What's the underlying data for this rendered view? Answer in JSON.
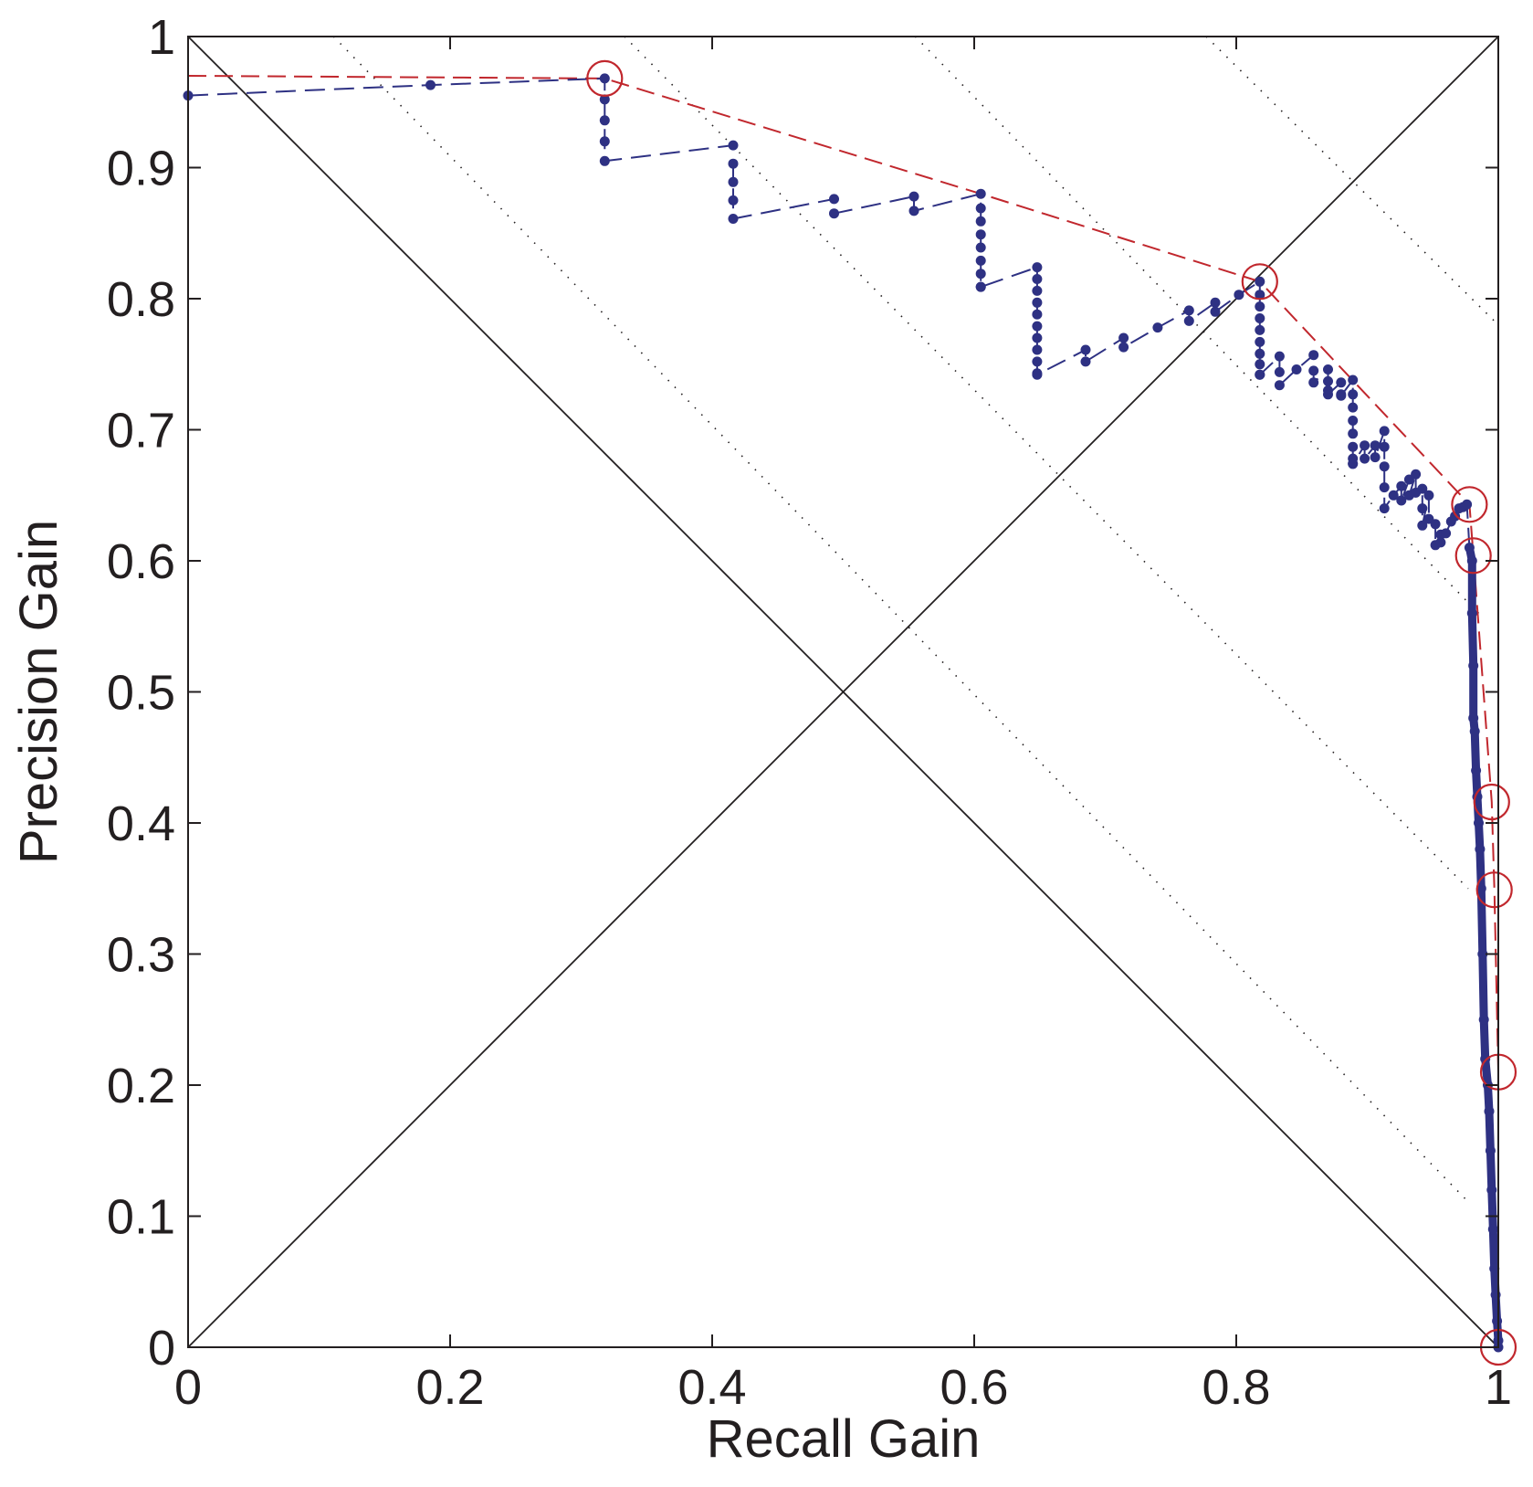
{
  "chart_data": {
    "type": "line",
    "xlabel": "Recall Gain",
    "ylabel": "Precision Gain",
    "xlim": [
      0,
      1
    ],
    "ylim": [
      0,
      1
    ],
    "xticks": [
      "0",
      "0.2",
      "0.4",
      "0.6",
      "0.8",
      "1"
    ],
    "yticks": [
      "0",
      "0.1",
      "0.2",
      "0.3",
      "0.4",
      "0.5",
      "0.6",
      "0.7",
      "0.8",
      "0.9",
      "1"
    ],
    "grid": false,
    "colors": {
      "curve": "#2e3183",
      "hull": "#c1272d",
      "reference": "#231f20",
      "iso": "#231f20"
    },
    "reference_lines": [
      {
        "x": [
          0,
          1
        ],
        "y": [
          0,
          1
        ]
      },
      {
        "x": [
          0,
          1
        ],
        "y": [
          1,
          0
        ]
      }
    ],
    "iso_lines": [
      {
        "x": [
          0.111,
          0.978
        ],
        "y": [
          1.0,
          0.11
        ]
      },
      {
        "x": [
          0.333,
          0.977
        ],
        "y": [
          1.0,
          0.35
        ]
      },
      {
        "x": [
          0.555,
          0.985
        ],
        "y": [
          1.0,
          0.56
        ]
      },
      {
        "x": [
          0.777,
          1.0
        ],
        "y": [
          1.0,
          0.78
        ]
      }
    ],
    "series": [
      {
        "style": "dashed-markers",
        "x": [
          0,
          0.185,
          0.318,
          0.318,
          0.318,
          0.318,
          0.318,
          0.416,
          0.416,
          0.416,
          0.416,
          0.416,
          0.493,
          0.493,
          0.554,
          0.554,
          0.605,
          0.605,
          0.605,
          0.605,
          0.605,
          0.605,
          0.605,
          0.605,
          0.605,
          0.648,
          0.648,
          0.648,
          0.648,
          0.648,
          0.648,
          0.648,
          0.648,
          0.648,
          0.648,
          0.648,
          0.685,
          0.685,
          0.714,
          0.714,
          0.74,
          0.764,
          0.764,
          0.784,
          0.784,
          0.802,
          0.818,
          0.818,
          0.818,
          0.818,
          0.818,
          0.818,
          0.818,
          0.818,
          0.818,
          0.818,
          0.833,
          0.833,
          0.833,
          0.846,
          0.859,
          0.859,
          0.859,
          0.87,
          0.87,
          0.87,
          0.87,
          0.88,
          0.88,
          0.88,
          0.889,
          0.889,
          0.889,
          0.889,
          0.889,
          0.889,
          0.889,
          0.889,
          0.889,
          0.898,
          0.898,
          0.906,
          0.906,
          0.913,
          0.913,
          0.913,
          0.913,
          0.913,
          0.92,
          0.926,
          0.926,
          0.932,
          0.932,
          0.937,
          0.937,
          0.942,
          0.942,
          0.942,
          0.947,
          0.947,
          0.952,
          0.952,
          0.956,
          0.956,
          0.96,
          0.964,
          0.967,
          0.97,
          0.973,
          0.976,
          0.978,
          0.98,
          0.98,
          0.981,
          0.981,
          0.982,
          0.983,
          0.984,
          0.985,
          0.986,
          0.987,
          0.988,
          0.989,
          0.99,
          0.992,
          0.993,
          0.994,
          0.995,
          0.996,
          0.997,
          0.998,
          0.999,
          1.0,
          1.0
        ],
        "y": [
          0.955,
          0.963,
          0.968,
          0.952,
          0.936,
          0.92,
          0.905,
          0.917,
          0.903,
          0.889,
          0.875,
          0.861,
          0.876,
          0.865,
          0.878,
          0.867,
          0.88,
          0.869,
          0.859,
          0.849,
          0.839,
          0.829,
          0.819,
          0.809,
          0.809,
          0.824,
          0.815,
          0.806,
          0.797,
          0.788,
          0.779,
          0.77,
          0.761,
          0.752,
          0.743,
          0.742,
          0.761,
          0.752,
          0.77,
          0.763,
          0.778,
          0.791,
          0.783,
          0.797,
          0.79,
          0.803,
          0.813,
          0.803,
          0.794,
          0.785,
          0.776,
          0.767,
          0.758,
          0.75,
          0.742,
          0.742,
          0.756,
          0.744,
          0.734,
          0.746,
          0.757,
          0.745,
          0.736,
          0.746,
          0.737,
          0.73,
          0.727,
          0.736,
          0.727,
          0.726,
          0.738,
          0.727,
          0.717,
          0.707,
          0.697,
          0.687,
          0.678,
          0.674,
          0.674,
          0.688,
          0.678,
          0.688,
          0.679,
          0.699,
          0.687,
          0.672,
          0.656,
          0.64,
          0.65,
          0.657,
          0.646,
          0.662,
          0.65,
          0.666,
          0.652,
          0.655,
          0.64,
          0.627,
          0.65,
          0.632,
          0.628,
          0.612,
          0.62,
          0.614,
          0.621,
          0.63,
          0.634,
          0.64,
          0.641,
          0.643,
          0.61,
          0.6,
          0.56,
          0.52,
          0.48,
          0.47,
          0.44,
          0.42,
          0.4,
          0.38,
          0.35,
          0.3,
          0.25,
          0.22,
          0.2,
          0.18,
          0.15,
          0.12,
          0.09,
          0.06,
          0.04,
          0.02,
          0.005,
          0.0
        ]
      },
      {
        "style": "dashed",
        "x": [
          0,
          0.318,
          0.605,
          0.818,
          0.978,
          0.981,
          0.995,
          0.997,
          1.0,
          1.0
        ],
        "y": [
          0.97,
          0.968,
          0.88,
          0.813,
          0.643,
          0.604,
          0.416,
          0.349,
          0.21,
          0.0
        ]
      }
    ],
    "highlighted_points": {
      "x": [
        0.318,
        0.818,
        0.978,
        0.981,
        0.995,
        0.997,
        1.0,
        1.0
      ],
      "y": [
        0.968,
        0.813,
        0.643,
        0.604,
        0.416,
        0.349,
        0.21,
        0.0
      ]
    }
  }
}
